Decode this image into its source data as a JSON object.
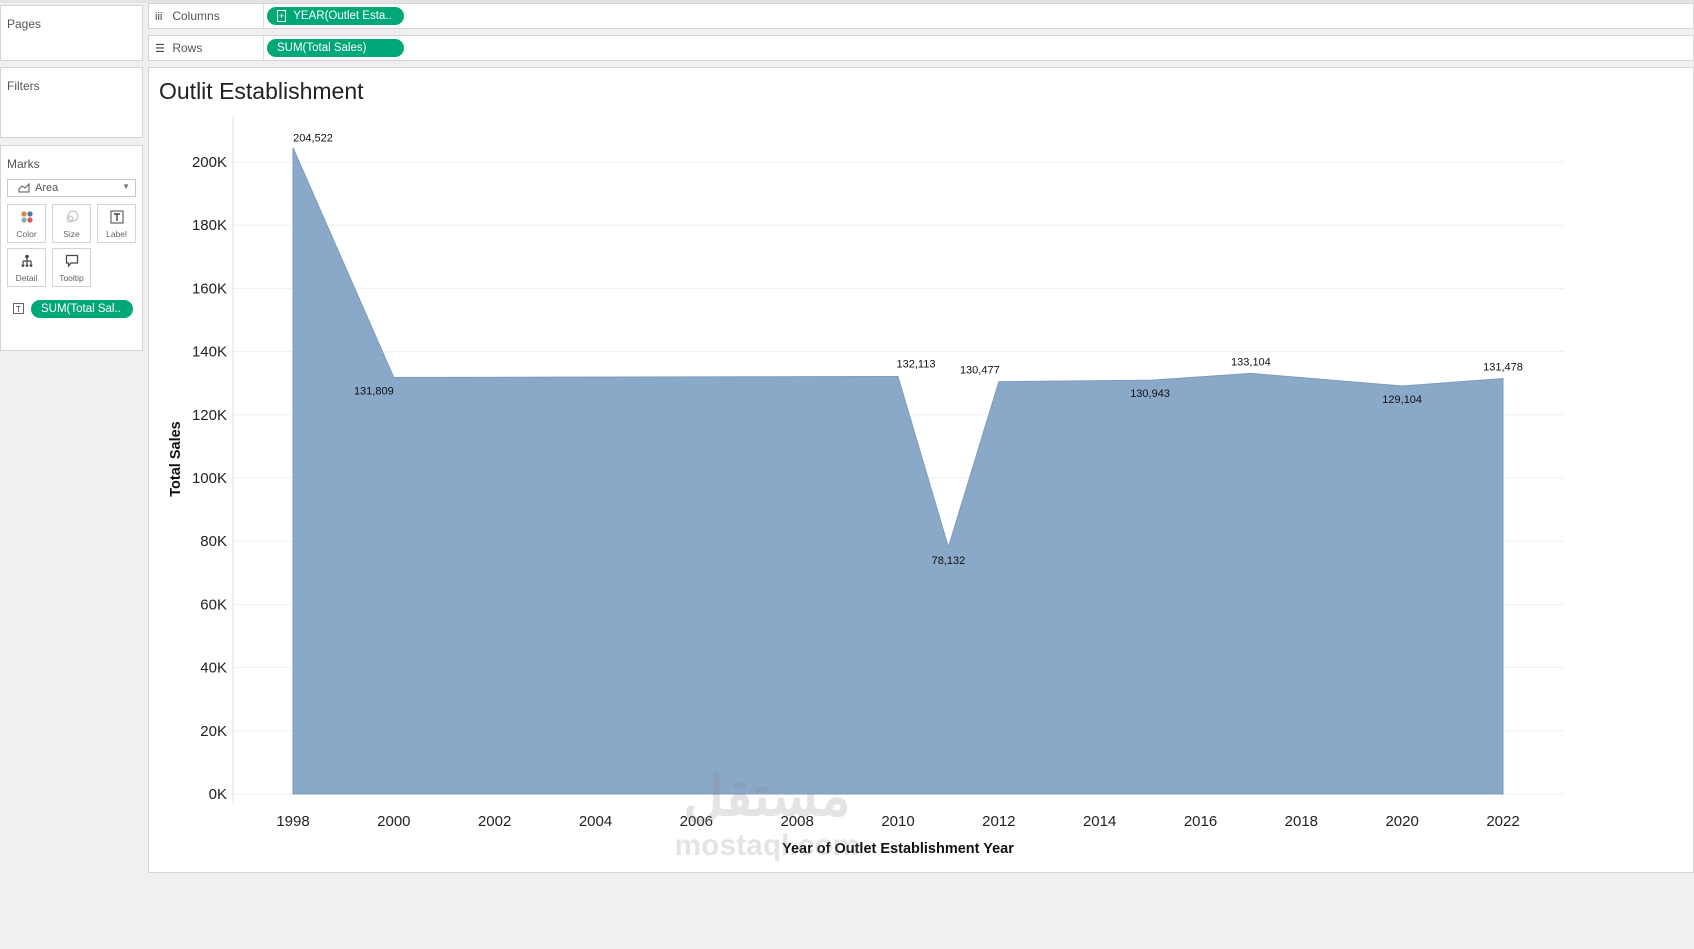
{
  "sidebar": {
    "pages_label": "Pages",
    "filters_label": "Filters",
    "marks_label": "Marks",
    "mark_type": "Area",
    "buttons": {
      "color": "Color",
      "size": "Size",
      "label": "Label",
      "detail": "Detail",
      "tooltip": "Tooltip"
    },
    "mark_pill": "SUM(Total Sal.."
  },
  "shelves": {
    "columns_label": "Columns",
    "columns_pill": "YEAR(Outlet Esta..",
    "rows_label": "Rows",
    "rows_pill": "SUM(Total Sales)"
  },
  "colors": {
    "pill": "#00a777",
    "area_fill": "#8aa8c8",
    "area_line": "#7d9bbd"
  },
  "watermark": {
    "arabic": "مستقل",
    "latin": "mostaql.com"
  },
  "chart_data": {
    "type": "area",
    "title": "Outlit Establishment",
    "xlabel": "Year of Outlet Establishment Year",
    "ylabel": "Total Sales",
    "x_ticks": [
      "1998",
      "2000",
      "2002",
      "2004",
      "2006",
      "2008",
      "2010",
      "2012",
      "2014",
      "2016",
      "2018",
      "2020",
      "2022"
    ],
    "xlim": [
      1998,
      2022
    ],
    "y_ticks": [
      "0K",
      "20K",
      "40K",
      "60K",
      "80K",
      "100K",
      "120K",
      "140K",
      "160K",
      "180K",
      "200K"
    ],
    "ylim": [
      0,
      214000
    ],
    "grid": true,
    "series": [
      {
        "x": [
          1998,
          2000,
          2010,
          2011,
          2012,
          2015,
          2017,
          2020,
          2022
        ],
        "values": [
          204522,
          131809,
          132113,
          78132,
          130477,
          130943,
          133104,
          129104,
          131478
        ],
        "labels": [
          "204,522",
          "131,809",
          "132,113",
          "78,132",
          "130,477",
          "130,943",
          "133,104",
          "129,104",
          "131,478"
        ]
      }
    ]
  }
}
